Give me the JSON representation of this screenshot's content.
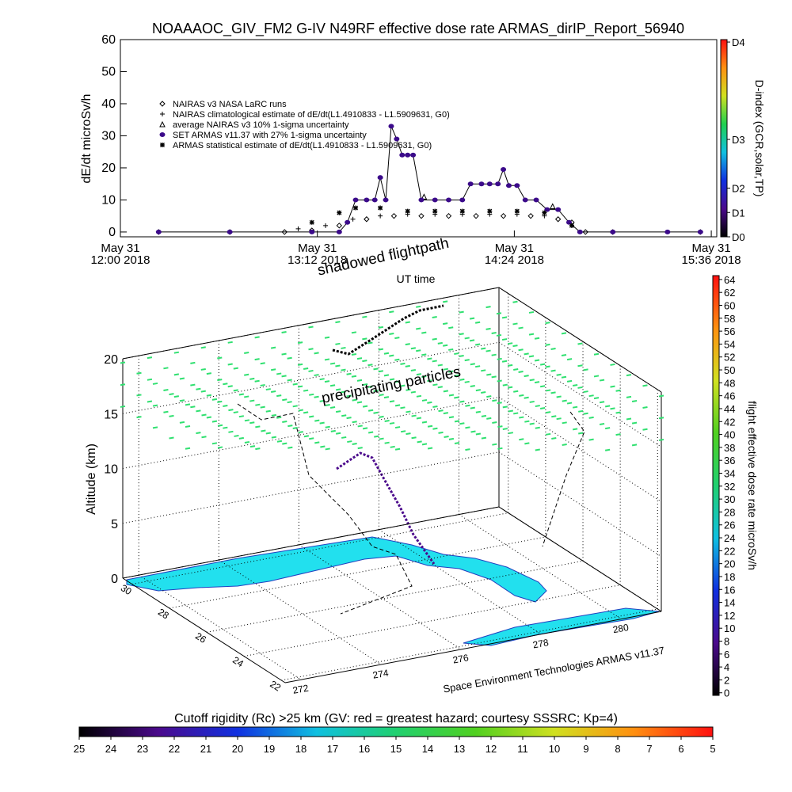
{
  "chart_data": [
    {
      "type": "line",
      "title": "NOAAAOC_GIV_FM2 G-IV    N49RF   effective dose rate ARMAS_dirIP_Report_56940",
      "ylabel": "dE/dt microSv/h",
      "xlabel": "UT time",
      "xlim": [
        720,
        938
      ],
      "xticks": [
        {
          "value": 720,
          "label": [
            "May 31",
            "12:00 2018"
          ]
        },
        {
          "value": 792,
          "label": [
            "May 31",
            "13:12 2018"
          ]
        },
        {
          "value": 864,
          "label": [
            "May 31",
            "14:24 2018"
          ]
        },
        {
          "value": 936,
          "label": [
            "May 31",
            "15:36 2018"
          ]
        }
      ],
      "ylim": [
        -1.5,
        60
      ],
      "yticks": [
        0,
        10,
        20,
        30,
        40,
        50,
        60
      ],
      "series": [
        {
          "name": "NAIRAS v3 NASA LaRC runs",
          "marker": "diamond",
          "color": "#000000",
          "x": [
            734,
            760,
            780,
            790,
            800,
            810,
            820,
            830,
            840,
            850,
            860,
            870,
            880,
            885,
            890,
            900,
            932
          ],
          "values": [
            0,
            0,
            0,
            0.5,
            2,
            4,
            5,
            5,
            5,
            5,
            5,
            5,
            4,
            3,
            0,
            0,
            0
          ]
        },
        {
          "name": "NAIRAS climatological estimate of dE/dt(L1.4910833 - L1.5909631, G0)",
          "marker": "plus",
          "color": "#000000",
          "x": [
            785,
            795,
            805,
            815,
            825,
            835,
            845,
            855,
            865,
            875,
            885
          ],
          "values": [
            1,
            2,
            4,
            5,
            5.5,
            5.5,
            5.5,
            5.5,
            5.5,
            5,
            2
          ]
        },
        {
          "name": "average NAIRAS v3 10% 1-sigma uncertainty",
          "marker": "triangle",
          "color": "#000000",
          "x": [
            831,
            878
          ],
          "values": [
            11,
            8
          ]
        },
        {
          "name": "SET ARMAS v11.37 with 27% 1-sigma uncertainty",
          "marker": "circle",
          "color": "#3b0a8a",
          "line": true,
          "x": [
            734,
            760,
            790,
            800,
            803,
            806,
            810,
            813,
            815,
            817,
            819,
            821,
            823,
            825,
            827,
            830,
            835,
            840,
            845,
            848,
            852,
            855,
            858,
            860,
            862,
            865,
            868,
            872,
            876,
            880,
            884,
            888,
            900,
            920,
            932
          ],
          "values": [
            0,
            0,
            0,
            0,
            3,
            10,
            10,
            10,
            17,
            10,
            33,
            29,
            24,
            24,
            24,
            10,
            10,
            10,
            10,
            15,
            15,
            15,
            15,
            19.5,
            14.5,
            14.5,
            10,
            10,
            7,
            7,
            3,
            0,
            0,
            0,
            0
          ]
        },
        {
          "name": "ARMAS statistical estimate of dE/dt(L1.4910833 - L1.5909631, G0)",
          "marker": "asterisk",
          "color": "#000000",
          "x": [
            790,
            800,
            806,
            815,
            825,
            835,
            845,
            855,
            865,
            875,
            885
          ],
          "values": [
            3,
            6,
            7.5,
            7.5,
            6.5,
            6.5,
            6.5,
            6.5,
            6.5,
            6,
            2
          ]
        }
      ]
    },
    {
      "type": "colorbar",
      "orientation": "vertical",
      "label": "D-index (GCR,solar,TP)",
      "lim": [
        0,
        8.1
      ],
      "ticks": [
        {
          "value": 0,
          "label": "D0"
        },
        {
          "value": 1,
          "label": "D1"
        },
        {
          "value": 2,
          "label": "D2"
        },
        {
          "value": 4,
          "label": "D3"
        },
        {
          "value": 8,
          "label": "D4"
        }
      ],
      "colors": [
        "#000000",
        "#4b0a8c",
        "#1030e0",
        "#10c0e0",
        "#20d050",
        "#d0e020",
        "#ff9010",
        "#ff1010"
      ]
    },
    {
      "type": "scatter3d",
      "annotations": [
        "shadowed flightpath",
        "precipitating particles"
      ],
      "credit": "Space Environment Technologies ARMAS v11.37",
      "zlabel": "Altitude (km)",
      "zlim": [
        0,
        20
      ],
      "zticks": [
        0,
        5,
        10,
        15,
        20
      ],
      "ylim": [
        30.5,
        21.8
      ],
      "yticks": [
        30,
        28,
        26,
        24,
        22
      ],
      "xlim": [
        271.6,
        281
      ],
      "xticks": [
        272,
        274,
        276,
        278,
        280
      ]
    },
    {
      "type": "colorbar",
      "orientation": "vertical",
      "label": "flight effective dose rate microSv/h",
      "lim": [
        -0.4,
        64.6
      ],
      "ticks": [
        0,
        2,
        4,
        6,
        8,
        10,
        12,
        14,
        16,
        18,
        20,
        22,
        24,
        26,
        28,
        30,
        32,
        34,
        36,
        38,
        40,
        42,
        44,
        46,
        48,
        50,
        52,
        54,
        56,
        58,
        60,
        62,
        64
      ],
      "colors": [
        "#000000",
        "#4b0a8c",
        "#1030e0",
        "#10c0e0",
        "#20d070",
        "#50d020",
        "#d0e020",
        "#ff9010",
        "#ff1010"
      ]
    },
    {
      "type": "colorbar",
      "orientation": "horizontal",
      "label": "Cutoff rigidity (Rc) >25 km (GV: red = greatest hazard; courtesy SSSRC; Kp=4)",
      "lim": [
        25,
        5
      ],
      "ticks": [
        25,
        24,
        23,
        22,
        21,
        20,
        19,
        18,
        17,
        16,
        15,
        14,
        13,
        12,
        11,
        10,
        9,
        8,
        7,
        6,
        5
      ],
      "colors": [
        "#000000",
        "#4b0a8c",
        "#1030e0",
        "#10c0e0",
        "#20d070",
        "#50d020",
        "#d0e020",
        "#ff9010",
        "#ff1010"
      ]
    }
  ]
}
